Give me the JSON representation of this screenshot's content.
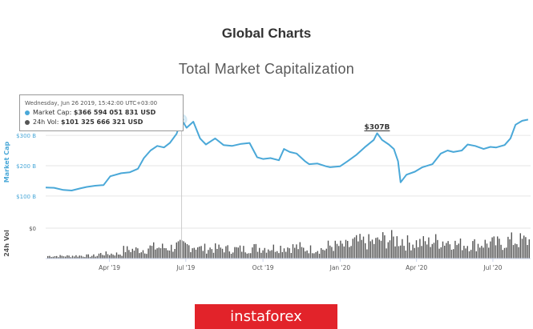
{
  "page_title": "Global Charts",
  "chart_data": {
    "type": "line",
    "title": "Total Market Capitalization",
    "ylabel": "Market Cap",
    "y2label": "24h Vol",
    "y_ticks": [
      100,
      200,
      300
    ],
    "y_tick_labels": [
      "$100 B",
      "$200 B",
      "$300 B"
    ],
    "ylim": [
      60,
      390
    ],
    "vol_tick_label": "$0",
    "x_tick_labels": [
      "Apr '19",
      "Jul '19",
      "Oct '19",
      "Jan '20",
      "Apr '20",
      "Jul '20"
    ],
    "x_tick_dates": [
      "2019-04-01",
      "2019-07-01",
      "2019-10-01",
      "2020-01-01",
      "2020-04-01",
      "2020-07-01"
    ],
    "xlim": [
      "2019-01-15",
      "2020-08-15"
    ],
    "series": [
      {
        "name": "Market Cap",
        "color": "#4aa8d8",
        "points": [
          [
            "2019-01-15",
            128
          ],
          [
            "2019-01-25",
            127
          ],
          [
            "2019-02-05",
            120
          ],
          [
            "2019-02-15",
            118
          ],
          [
            "2019-02-25",
            125
          ],
          [
            "2019-03-05",
            130
          ],
          [
            "2019-03-15",
            134
          ],
          [
            "2019-03-25",
            136
          ],
          [
            "2019-04-02",
            165
          ],
          [
            "2019-04-15",
            175
          ],
          [
            "2019-04-25",
            178
          ],
          [
            "2019-05-05",
            190
          ],
          [
            "2019-05-12",
            225
          ],
          [
            "2019-05-20",
            250
          ],
          [
            "2019-05-28",
            265
          ],
          [
            "2019-06-05",
            260
          ],
          [
            "2019-06-12",
            275
          ],
          [
            "2019-06-20",
            305
          ],
          [
            "2019-06-26",
            352
          ],
          [
            "2019-07-02",
            325
          ],
          [
            "2019-07-10",
            345
          ],
          [
            "2019-07-18",
            290
          ],
          [
            "2019-07-25",
            270
          ],
          [
            "2019-08-05",
            290
          ],
          [
            "2019-08-15",
            268
          ],
          [
            "2019-08-25",
            265
          ],
          [
            "2019-09-05",
            272
          ],
          [
            "2019-09-15",
            275
          ],
          [
            "2019-09-24",
            228
          ],
          [
            "2019-10-01",
            222
          ],
          [
            "2019-10-10",
            225
          ],
          [
            "2019-10-20",
            218
          ],
          [
            "2019-10-26",
            255
          ],
          [
            "2019-11-02",
            245
          ],
          [
            "2019-11-10",
            240
          ],
          [
            "2019-11-20",
            215
          ],
          [
            "2019-11-25",
            205
          ],
          [
            "2019-12-05",
            207
          ],
          [
            "2019-12-15",
            198
          ],
          [
            "2019-12-20",
            195
          ],
          [
            "2020-01-01",
            198
          ],
          [
            "2020-01-10",
            215
          ],
          [
            "2020-01-20",
            235
          ],
          [
            "2020-01-30",
            260
          ],
          [
            "2020-02-10",
            285
          ],
          [
            "2020-02-14",
            307
          ],
          [
            "2020-02-20",
            285
          ],
          [
            "2020-02-28",
            270
          ],
          [
            "2020-03-05",
            255
          ],
          [
            "2020-03-10",
            215
          ],
          [
            "2020-03-13",
            145
          ],
          [
            "2020-03-20",
            170
          ],
          [
            "2020-03-30",
            180
          ],
          [
            "2020-04-08",
            195
          ],
          [
            "2020-04-20",
            205
          ],
          [
            "2020-04-30",
            240
          ],
          [
            "2020-05-08",
            250
          ],
          [
            "2020-05-15",
            245
          ],
          [
            "2020-05-25",
            250
          ],
          [
            "2020-06-01",
            270
          ],
          [
            "2020-06-10",
            265
          ],
          [
            "2020-06-20",
            255
          ],
          [
            "2020-06-28",
            262
          ],
          [
            "2020-07-05",
            260
          ],
          [
            "2020-07-15",
            268
          ],
          [
            "2020-07-22",
            290
          ],
          [
            "2020-07-28",
            335
          ],
          [
            "2020-08-05",
            348
          ],
          [
            "2020-08-12",
            352
          ]
        ]
      },
      {
        "name": "24h Vol",
        "color": "#555555",
        "bars": [
          [
            "2019-02",
            8
          ],
          [
            "2019-03",
            9
          ],
          [
            "2019-04",
            15
          ],
          [
            "2019-05",
            28
          ],
          [
            "2019-06",
            35
          ],
          [
            "2019-07",
            40
          ],
          [
            "2019-08",
            32
          ],
          [
            "2019-09",
            30
          ],
          [
            "2019-10",
            34
          ],
          [
            "2019-11",
            36
          ],
          [
            "2019-12",
            30
          ],
          [
            "2020-01",
            40
          ],
          [
            "2020-02",
            52
          ],
          [
            "2020-03",
            60
          ],
          [
            "2020-04",
            50
          ],
          [
            "2020-05",
            55
          ],
          [
            "2020-06",
            45
          ],
          [
            "2020-07",
            48
          ],
          [
            "2020-08",
            56
          ]
        ]
      }
    ],
    "annotation": {
      "date": "2020-02-14",
      "value": 307,
      "label": "$307B"
    },
    "crosshair_date": "2019-06-26",
    "tooltip": {
      "date": "Wednesday, Jun 26 2019, 15:42:00 UTC+03:00",
      "rows": [
        {
          "name": "Market Cap",
          "value": "$366 594 051 831 USD",
          "color": "#4aa8d8"
        },
        {
          "name": "24h Vol",
          "value": "$101 325 666 321 USD",
          "color": "#555555"
        }
      ]
    }
  },
  "brand": {
    "text": "instaforex"
  }
}
